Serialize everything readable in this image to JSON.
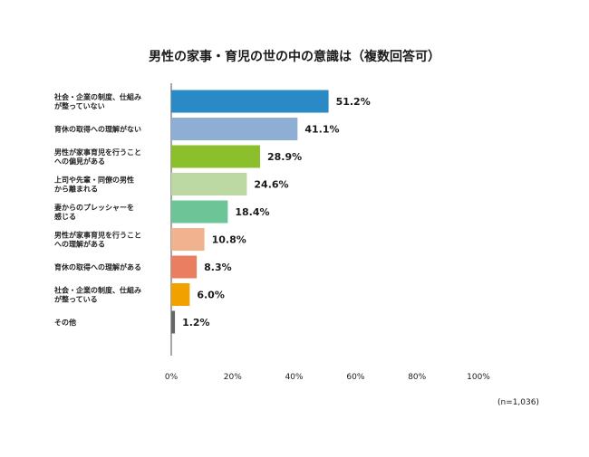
{
  "chart_data": {
    "type": "bar",
    "orientation": "horizontal",
    "title": "男性の家事・育児の世の中の意識は（複数回答可）",
    "categories": [
      [
        "社会・企業の制度、仕組み",
        "が整っていない"
      ],
      [
        "育休の取得への理解がない"
      ],
      [
        "男性が家事育児を行うこと",
        "への偏見がある"
      ],
      [
        "上司や先輩・同僚の男性",
        "から離まれる"
      ],
      [
        "妻からのプレッシャーを",
        "感じる"
      ],
      [
        "男性が家事育児を行うこと",
        "への理解がある"
      ],
      [
        "育休の取得への理解がある"
      ],
      [
        "社会・企業の制度、仕組み",
        "が整っている"
      ],
      [
        "その他"
      ]
    ],
    "values": [
      51.2,
      41.1,
      28.9,
      24.6,
      18.4,
      10.8,
      8.3,
      6.0,
      1.2
    ],
    "value_labels": [
      "51.2%",
      "41.1%",
      "28.9%",
      "24.6%",
      "18.4%",
      "10.8%",
      "8.3%",
      "6.0%",
      "1.2%"
    ],
    "colors": [
      "#2a8ac6",
      "#8eaed4",
      "#8cbf2c",
      "#bcd9a3",
      "#6cc596",
      "#f1b38f",
      "#e97f60",
      "#f1a200",
      "#666666"
    ],
    "xlim": [
      0,
      100
    ],
    "x_ticks": [
      "0%",
      "20%",
      "40%",
      "60%",
      "80%",
      "100%"
    ],
    "note": "(n=1,036)",
    "grid": false
  }
}
